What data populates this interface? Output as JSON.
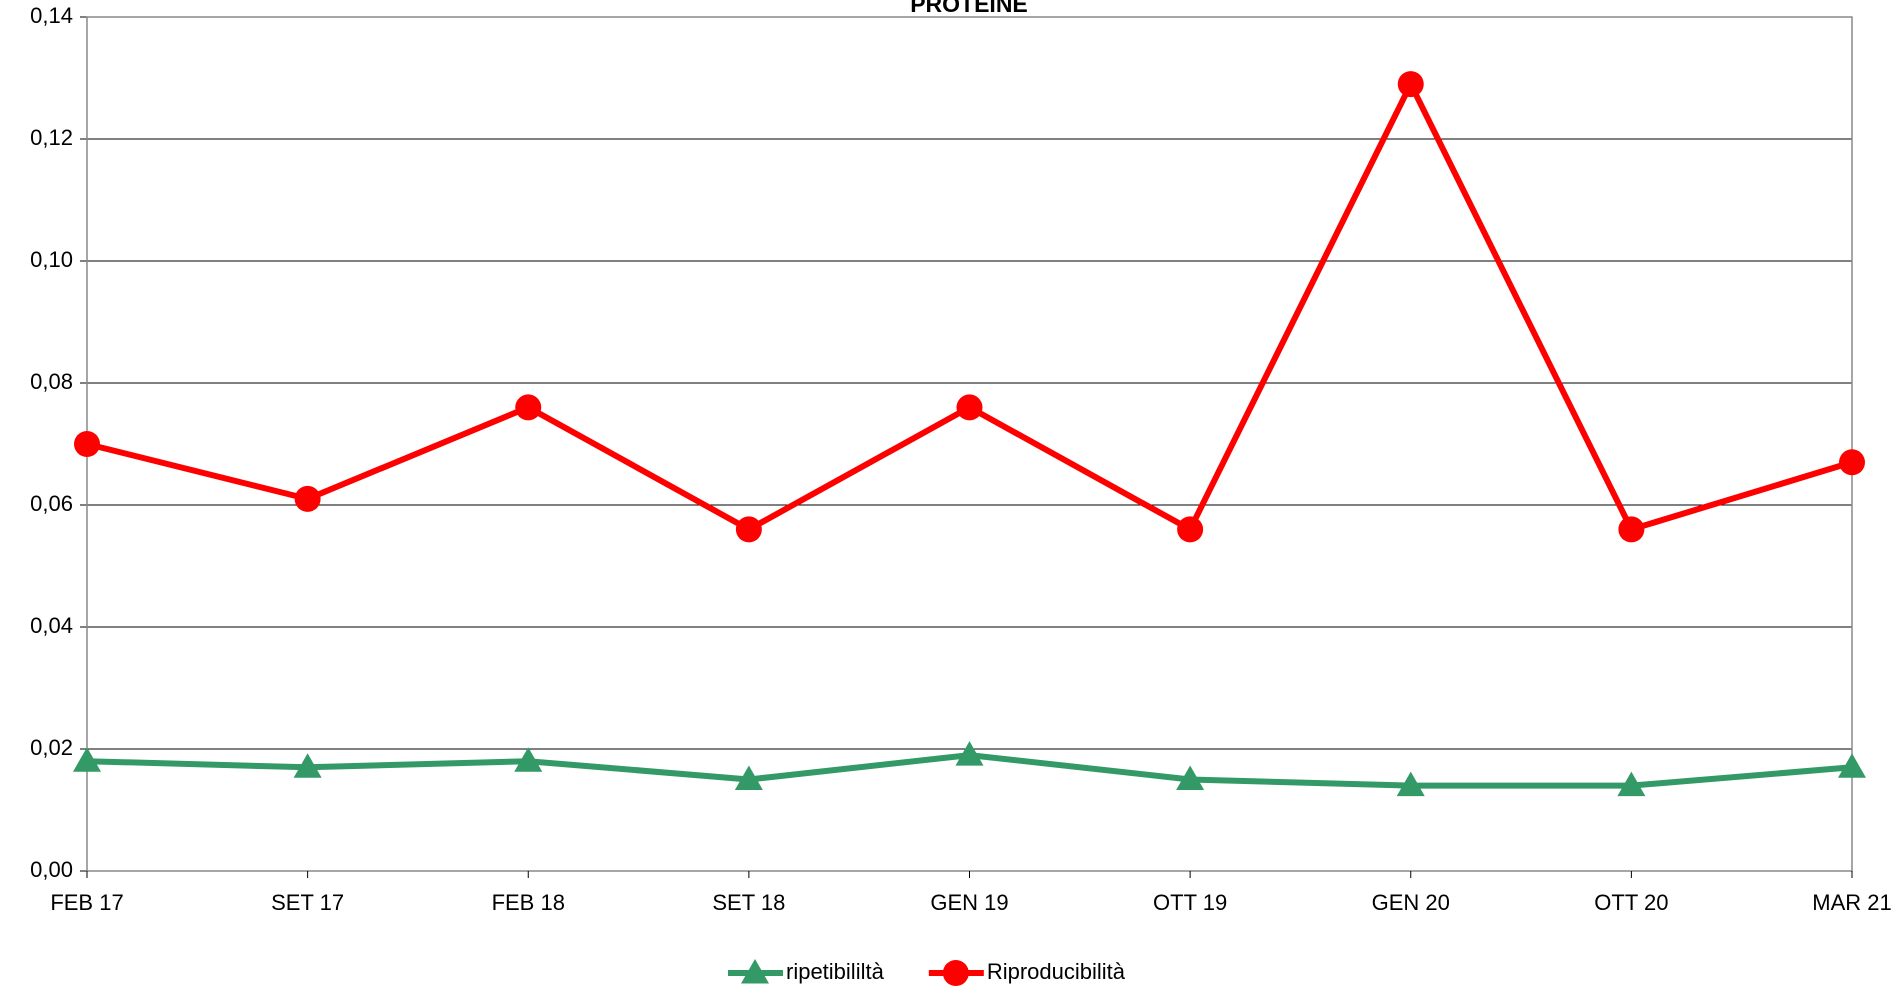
{
  "chart_data": {
    "type": "line",
    "title": "PROTEINE",
    "categories": [
      "FEB 17",
      "SET 17",
      "FEB 18",
      "SET 18",
      "GEN 19",
      "OTT 19",
      "GEN 20",
      "OTT 20",
      "MAR 21"
    ],
    "series": [
      {
        "name": "ripetibililtà",
        "color": "#339966",
        "marker": "triangle",
        "values": [
          0.018,
          0.017,
          0.018,
          0.015,
          0.019,
          0.015,
          0.014,
          0.014,
          0.017
        ]
      },
      {
        "name": "Riproducibilità",
        "color": "#ff0000",
        "marker": "circle",
        "values": [
          0.07,
          0.061,
          0.076,
          0.056,
          0.076,
          0.056,
          0.129,
          0.056,
          0.067
        ]
      }
    ],
    "ylim": [
      0,
      0.14
    ],
    "yticks": [
      {
        "value": 0,
        "label": "0,00"
      },
      {
        "value": 0.02,
        "label": "0,02"
      },
      {
        "value": 0.04,
        "label": "0,04"
      },
      {
        "value": 0.06,
        "label": "0,06"
      },
      {
        "value": 0.08,
        "label": "0,08"
      },
      {
        "value": 0.1,
        "label": "0,10"
      },
      {
        "value": 0.12,
        "label": "0,12"
      },
      {
        "value": 0.14,
        "label": "0,14"
      }
    ],
    "grid": true,
    "legend": "bottom"
  }
}
